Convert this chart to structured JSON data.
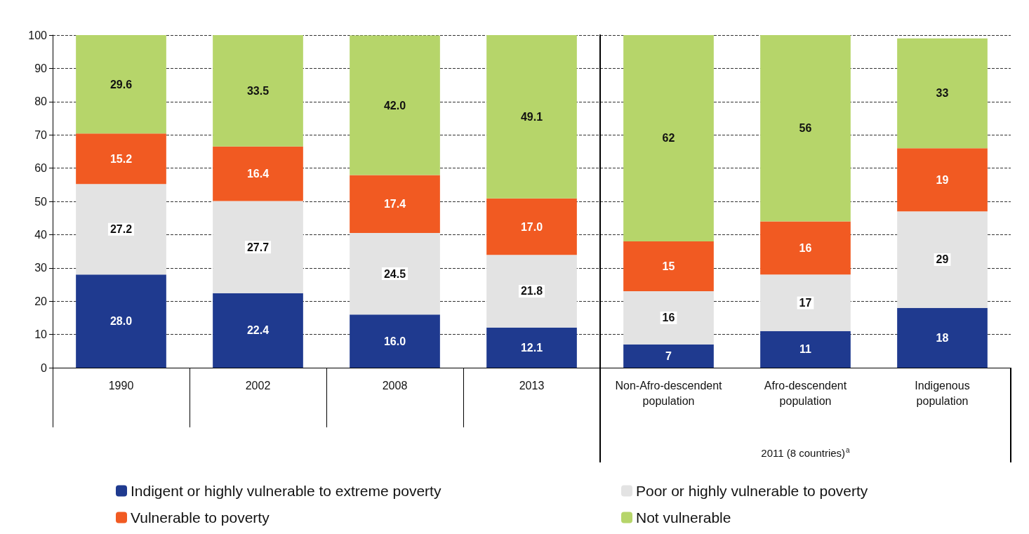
{
  "chart_data": [
    {
      "type": "bar",
      "stacked": true,
      "categories": [
        "1990",
        "2002",
        "2008",
        "2013"
      ],
      "series": [
        {
          "name": "Indigent or highly vulnerable to extreme poverty",
          "color": "#1f3a8f",
          "values": [
            28.0,
            22.4,
            16.0,
            12.1
          ],
          "value_labels": [
            "28.0",
            "22.4",
            "16.0",
            "12.1"
          ]
        },
        {
          "name": "Poor or highly vulnerable to poverty",
          "color": "#e3e3e3",
          "values": [
            27.2,
            27.7,
            24.5,
            21.8
          ],
          "value_labels": [
            "27.2",
            "27.7",
            "24.5",
            "21.8"
          ]
        },
        {
          "name": "Vulnerable to poverty",
          "color": "#f15a22",
          "values": [
            15.2,
            16.4,
            17.4,
            17.0
          ],
          "value_labels": [
            "15.2",
            "16.4",
            "17.4",
            "17.0"
          ]
        },
        {
          "name": "Not vulnerable",
          "color": "#b6d56a",
          "values": [
            29.6,
            33.5,
            42.0,
            49.1
          ],
          "value_labels": [
            "29.6",
            "33.5",
            "42.0",
            "49.1"
          ]
        }
      ],
      "ylim": [
        0,
        100
      ],
      "yticks": [
        0,
        10,
        20,
        30,
        40,
        50,
        60,
        70,
        80,
        90,
        100
      ],
      "grid": "y",
      "legend": "bottom"
    },
    {
      "type": "bar",
      "stacked": true,
      "xlabel": "2011 (8 countries)$^{a}$",
      "categories": [
        "Non-Afro-descendent population",
        "Afro-descendent population",
        "Indigenous population"
      ],
      "series": [
        {
          "color": "#1f3a8f",
          "values": [
            7,
            11,
            18
          ],
          "value_labels": [
            "7",
            "11",
            "18"
          ]
        },
        {
          "color": "#e3e3e3",
          "values": [
            16,
            17,
            29
          ],
          "value_labels": [
            "16",
            "17",
            "29"
          ]
        },
        {
          "color": "#f15a22",
          "values": [
            15,
            16,
            19
          ],
          "value_labels": [
            "15",
            "16",
            "19"
          ]
        },
        {
          "color": "#b6d56a",
          "values": [
            62,
            56,
            33
          ],
          "value_labels": [
            "62",
            "56",
            "33"
          ]
        }
      ],
      "ylim": [
        0,
        100
      ],
      "yticks": [
        0,
        10,
        20,
        30,
        40,
        50,
        60,
        70,
        80,
        90,
        100
      ],
      "grid": "y",
      "tick_labels": "x"
    }
  ]
}
